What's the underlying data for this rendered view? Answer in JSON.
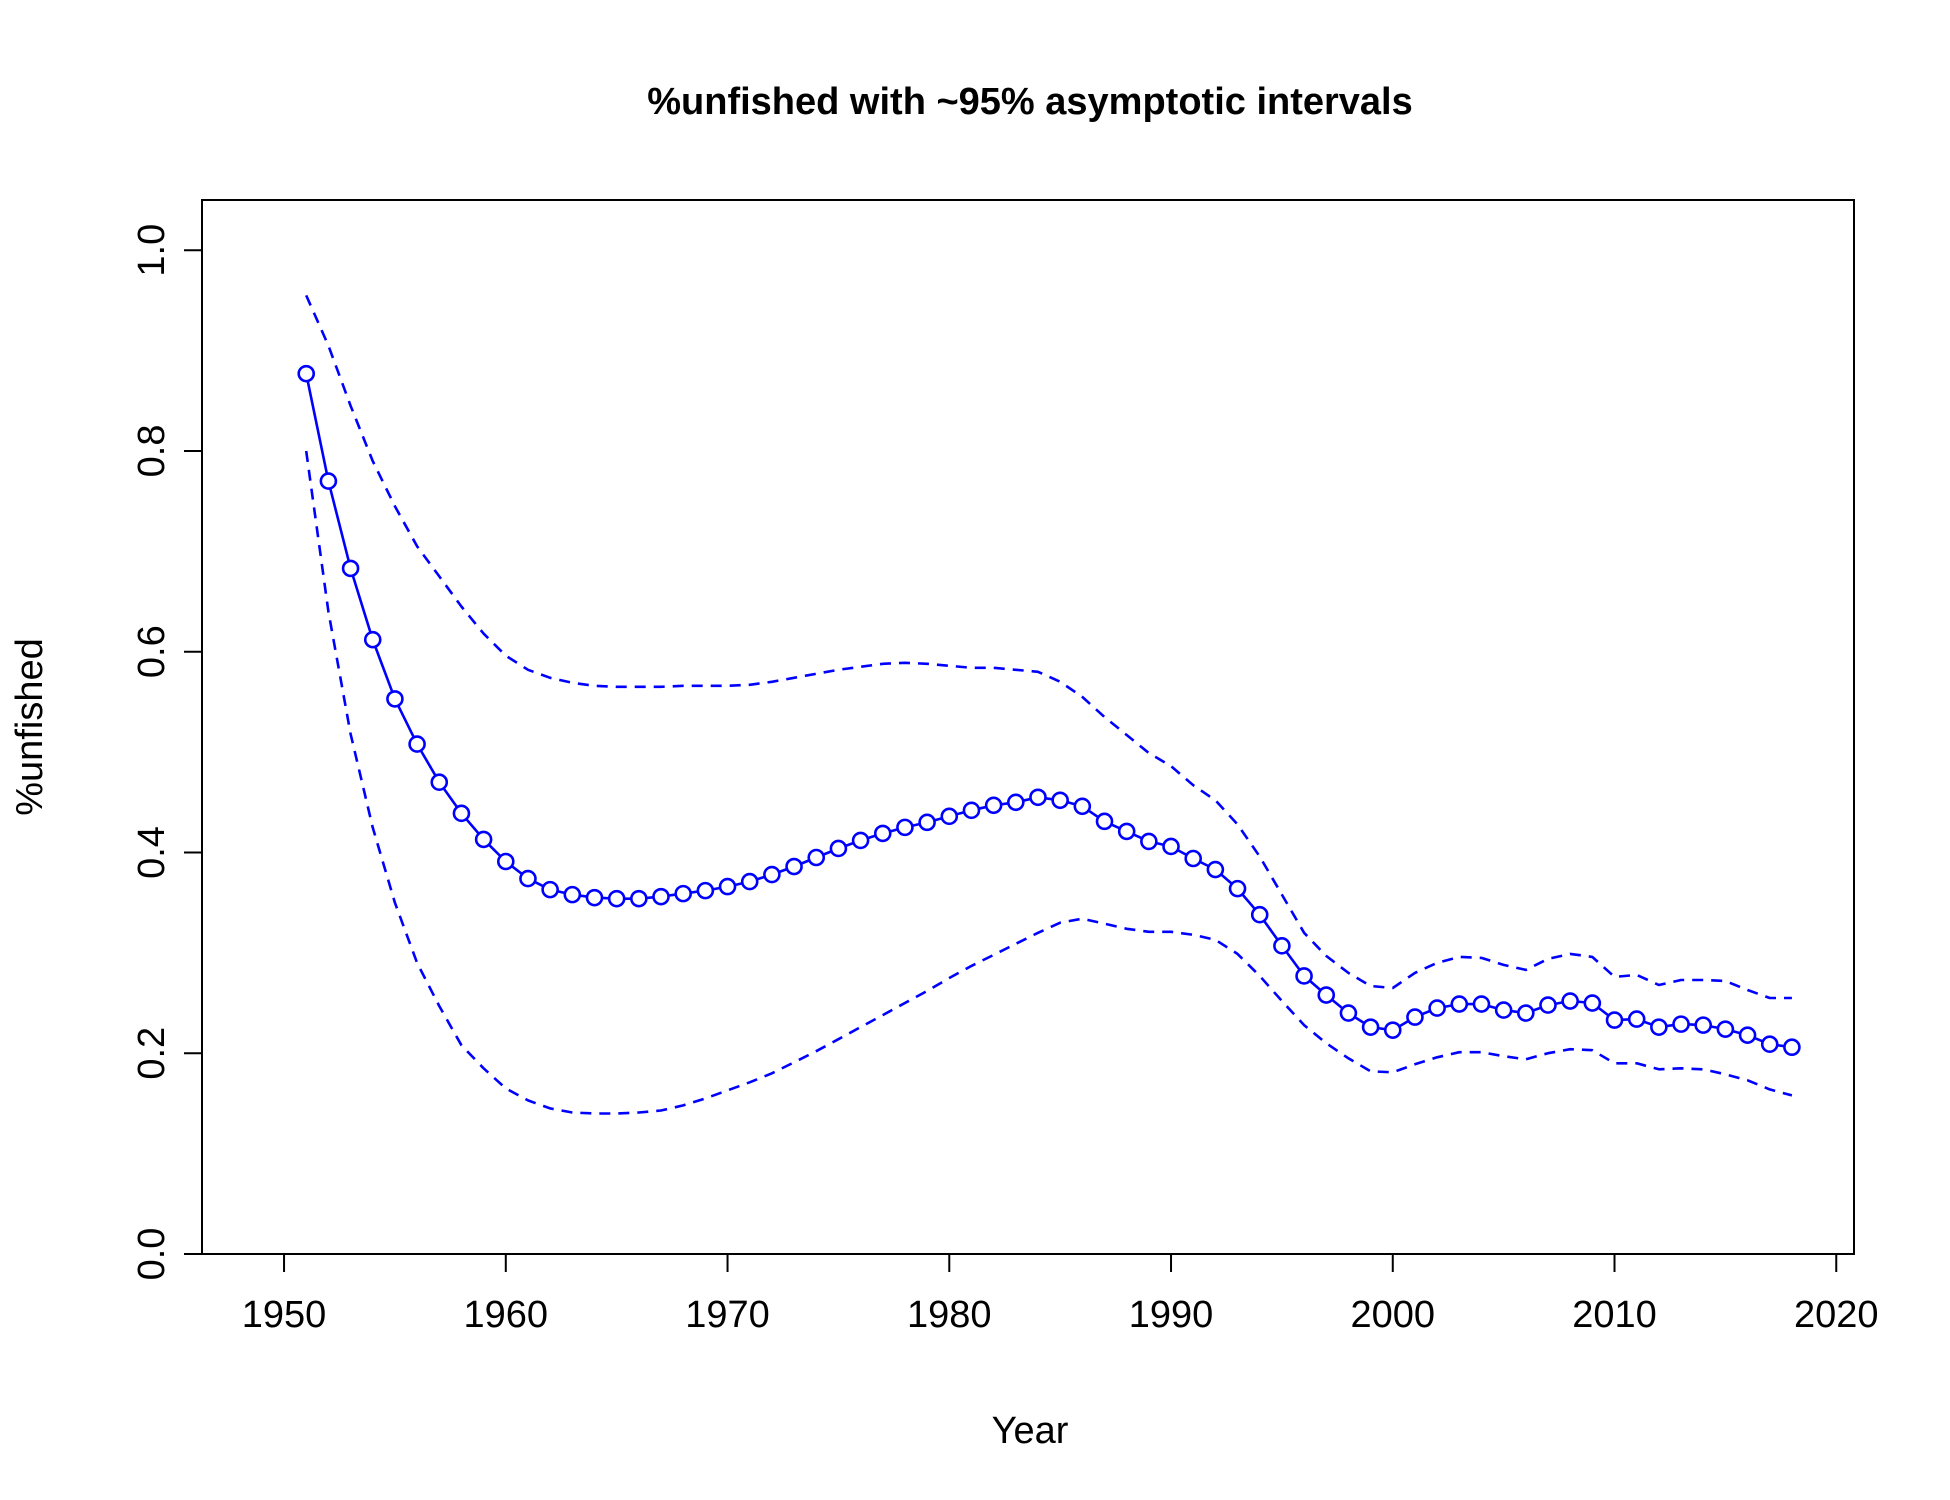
{
  "chart_data": {
    "type": "line",
    "title": "%unfished with ~95% asymptotic intervals",
    "xlabel": "Year",
    "ylabel": "%unfished",
    "xlim": [
      1946.3,
      2020.8
    ],
    "ylim": [
      0.0,
      1.05
    ],
    "x_ticks": [
      1950,
      1960,
      1970,
      1980,
      1990,
      2000,
      2010,
      2020
    ],
    "y_ticks": [
      0.0,
      0.2,
      0.4,
      0.6,
      0.8,
      1.0
    ],
    "x_tick_labels": [
      "1950",
      "1960",
      "1970",
      "1980",
      "1990",
      "2000",
      "2010",
      "2020"
    ],
    "y_tick_labels": [
      "0.0",
      "0.2",
      "0.4",
      "0.6",
      "0.8",
      "1.0"
    ],
    "grid": false,
    "colors": {
      "series": "#0000ff",
      "axes": "#000000"
    },
    "x": [
      1951,
      1952,
      1953,
      1954,
      1955,
      1956,
      1957,
      1958,
      1959,
      1960,
      1961,
      1962,
      1963,
      1964,
      1965,
      1966,
      1967,
      1968,
      1969,
      1970,
      1971,
      1972,
      1973,
      1974,
      1975,
      1976,
      1977,
      1978,
      1979,
      1980,
      1981,
      1982,
      1983,
      1984,
      1985,
      1986,
      1987,
      1988,
      1989,
      1990,
      1991,
      1992,
      1993,
      1994,
      1995,
      1996,
      1997,
      1998,
      1999,
      2000,
      2001,
      2002,
      2003,
      2004,
      2005,
      2006,
      2007,
      2008,
      2009,
      2010,
      2011,
      2012,
      2013,
      2014,
      2015,
      2016,
      2017,
      2018
    ],
    "series": [
      {
        "role": "estimate",
        "style": "solid-with-circles",
        "values": [
          0.877,
          0.77,
          0.683,
          0.612,
          0.553,
          0.508,
          0.47,
          0.439,
          0.413,
          0.391,
          0.374,
          0.363,
          0.358,
          0.355,
          0.354,
          0.354,
          0.356,
          0.359,
          0.362,
          0.366,
          0.371,
          0.378,
          0.386,
          0.395,
          0.404,
          0.412,
          0.419,
          0.425,
          0.43,
          0.436,
          0.442,
          0.447,
          0.45,
          0.455,
          0.452,
          0.446,
          0.431,
          0.421,
          0.411,
          0.406,
          0.394,
          0.383,
          0.364,
          0.338,
          0.307,
          0.277,
          0.258,
          0.24,
          0.226,
          0.223,
          0.236,
          0.245,
          0.249,
          0.249,
          0.243,
          0.24,
          0.248,
          0.252,
          0.25,
          0.233,
          0.234,
          0.226,
          0.229,
          0.228,
          0.224,
          0.218,
          0.209,
          0.206
        ]
      },
      {
        "role": "upper-interval",
        "style": "dashed",
        "values": [
          0.955,
          0.905,
          0.845,
          0.79,
          0.745,
          0.705,
          0.675,
          0.645,
          0.618,
          0.596,
          0.582,
          0.574,
          0.569,
          0.566,
          0.565,
          0.565,
          0.565,
          0.566,
          0.566,
          0.566,
          0.567,
          0.57,
          0.574,
          0.578,
          0.582,
          0.585,
          0.588,
          0.589,
          0.588,
          0.586,
          0.584,
          0.584,
          0.582,
          0.58,
          0.57,
          0.555,
          0.535,
          0.517,
          0.499,
          0.486,
          0.467,
          0.452,
          0.428,
          0.396,
          0.358,
          0.32,
          0.297,
          0.28,
          0.267,
          0.265,
          0.28,
          0.29,
          0.296,
          0.295,
          0.288,
          0.283,
          0.294,
          0.299,
          0.296,
          0.276,
          0.278,
          0.268,
          0.273,
          0.273,
          0.272,
          0.263,
          0.255,
          0.255
        ]
      },
      {
        "role": "lower-interval",
        "style": "dashed",
        "values": [
          0.8,
          0.64,
          0.518,
          0.425,
          0.35,
          0.29,
          0.247,
          0.208,
          0.185,
          0.165,
          0.153,
          0.145,
          0.141,
          0.14,
          0.14,
          0.141,
          0.143,
          0.148,
          0.155,
          0.163,
          0.171,
          0.18,
          0.191,
          0.202,
          0.214,
          0.226,
          0.238,
          0.25,
          0.262,
          0.275,
          0.287,
          0.298,
          0.309,
          0.32,
          0.33,
          0.334,
          0.329,
          0.324,
          0.321,
          0.321,
          0.318,
          0.313,
          0.299,
          0.277,
          0.252,
          0.228,
          0.21,
          0.195,
          0.182,
          0.181,
          0.189,
          0.196,
          0.201,
          0.201,
          0.197,
          0.194,
          0.2,
          0.204,
          0.203,
          0.19,
          0.19,
          0.184,
          0.185,
          0.184,
          0.179,
          0.173,
          0.164,
          0.158
        ]
      }
    ]
  }
}
